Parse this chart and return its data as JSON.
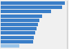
{
  "values": [
    97,
    93,
    76,
    62,
    58,
    56,
    54,
    52,
    50,
    49,
    28
  ],
  "bar_color": "#3a7ec8",
  "last_bar_color": "#9ac4e8",
  "background_color": "#f0f0f0",
  "plot_bg_color": "#f0f0f0",
  "xlim": [
    0,
    100
  ],
  "bar_height": 0.82
}
